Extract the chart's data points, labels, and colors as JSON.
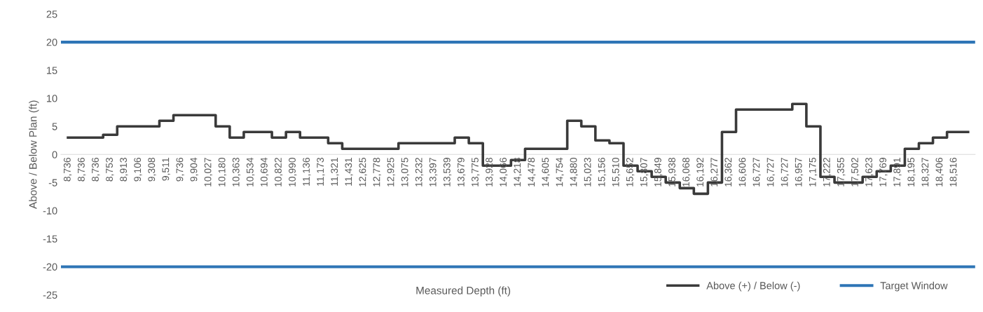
{
  "chart_data": {
    "type": "step",
    "xlabel": "Measured Depth (ft)",
    "ylabel": "Above / Below Plan (ft)",
    "categories": [
      "8,736",
      "8,736",
      "8,736",
      "8,753",
      "8,913",
      "9,106",
      "9,308",
      "9,511",
      "9,736",
      "9,904",
      "10,027",
      "10,180",
      "10,363",
      "10,534",
      "10,694",
      "10,822",
      "10,990",
      "11,136",
      "11,173",
      "11,321",
      "11,431",
      "12,625",
      "12,778",
      "12,925",
      "13,075",
      "13,232",
      "13,397",
      "13,539",
      "13,679",
      "13,775",
      "13,928",
      "14,066",
      "14,218",
      "14,478",
      "14,605",
      "14,754",
      "14,880",
      "15,023",
      "15,156",
      "15,510",
      "15,652",
      "15,807",
      "15,849",
      "15,938",
      "16,068",
      "16,192",
      "16,277",
      "16,362",
      "16,606",
      "16,727",
      "16,727",
      "16,727",
      "16,957",
      "17,175",
      "17,222",
      "17,355",
      "17,502",
      "17,623",
      "17,769",
      "17,891",
      "18,195",
      "18,327",
      "18,406",
      "18,516",
      null
    ],
    "series": [
      {
        "name": "Above (+) / Below (-)",
        "color": "#3a3a3a",
        "values": [
          3,
          3,
          3,
          3.5,
          5,
          5,
          5,
          6,
          7,
          7,
          7,
          5,
          3,
          4,
          4,
          3,
          4,
          3,
          3,
          2,
          1,
          1,
          1,
          1,
          2,
          2,
          2,
          2,
          3,
          2,
          -2,
          -2,
          -1,
          1,
          1,
          1,
          6,
          5,
          2.5,
          2,
          -2,
          -3,
          -4,
          -5,
          -6,
          -7,
          -5,
          4,
          8,
          8,
          8,
          8,
          9,
          5,
          -4,
          -5,
          -5,
          -4,
          -3,
          -2,
          1,
          2,
          3,
          4,
          4
        ]
      }
    ],
    "ref_lines": [
      {
        "axis": "y",
        "value": 20,
        "label": "Target Window",
        "color": "#2e75b6"
      },
      {
        "axis": "y",
        "value": -20,
        "color": "#2e75b6"
      }
    ],
    "ylim": [
      -25,
      25
    ],
    "yticks": [
      -25,
      -20,
      -15,
      -10,
      -5,
      0,
      5,
      10,
      15,
      20,
      25
    ],
    "grid": false,
    "legend": "bottom right"
  }
}
